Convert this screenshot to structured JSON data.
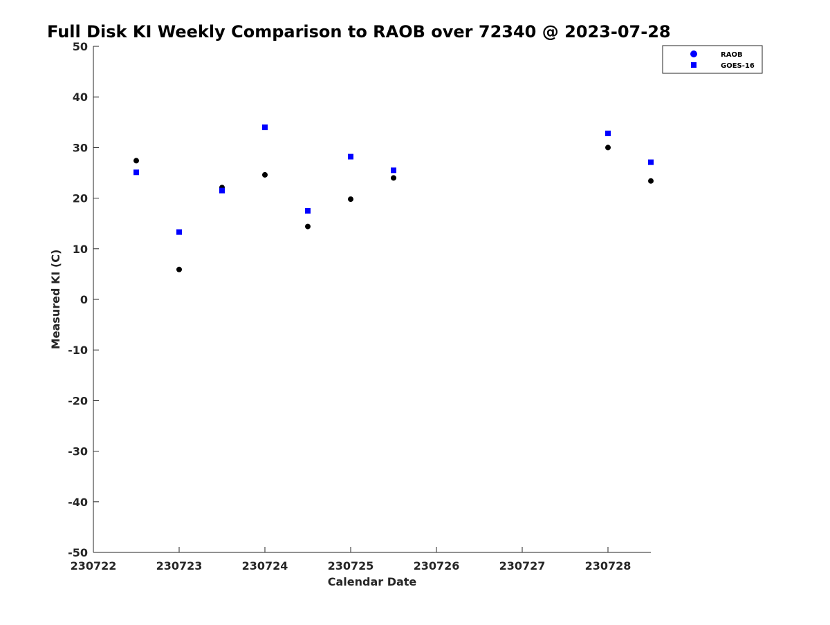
{
  "chart_data": {
    "type": "scatter",
    "title": "Full Disk KI Weekly Comparison to RAOB over 72340 @ 2023-07-28",
    "xlabel": "Calendar Date",
    "ylabel": "Measured KI (C)",
    "x_ticks": [
      {
        "value": 0,
        "label": "230722"
      },
      {
        "value": 1,
        "label": "230723"
      },
      {
        "value": 2,
        "label": "230724"
      },
      {
        "value": 3,
        "label": "230725"
      },
      {
        "value": 4,
        "label": "230726"
      },
      {
        "value": 5,
        "label": "230727"
      },
      {
        "value": 6,
        "label": "230728"
      }
    ],
    "xlim": [
      0,
      6.5
    ],
    "ylim": [
      -50,
      50
    ],
    "y_ticks": [
      50,
      40,
      30,
      20,
      10,
      0,
      -10,
      -20,
      -30,
      -40,
      -50
    ],
    "grid": false,
    "legend_position": "top-right",
    "series": [
      {
        "name": "RAOB",
        "marker": "circle",
        "color": "#000000",
        "legend_color": "#0000ff",
        "points": [
          {
            "x": 0.5,
            "y": 27.4
          },
          {
            "x": 1.0,
            "y": 5.9
          },
          {
            "x": 1.5,
            "y": 22.1
          },
          {
            "x": 2.0,
            "y": 24.6
          },
          {
            "x": 2.5,
            "y": 14.4
          },
          {
            "x": 3.0,
            "y": 19.8
          },
          {
            "x": 3.5,
            "y": 24.0
          },
          {
            "x": 6.0,
            "y": 30.0
          },
          {
            "x": 6.5,
            "y": 23.4
          }
        ]
      },
      {
        "name": "GOES-16",
        "marker": "square",
        "color": "#0000ff",
        "legend_color": "#0000ff",
        "points": [
          {
            "x": 0.5,
            "y": 25.1
          },
          {
            "x": 1.0,
            "y": 13.3
          },
          {
            "x": 1.5,
            "y": 21.5
          },
          {
            "x": 2.0,
            "y": 34.0
          },
          {
            "x": 2.5,
            "y": 17.5
          },
          {
            "x": 3.0,
            "y": 28.2
          },
          {
            "x": 3.5,
            "y": 25.5
          },
          {
            "x": 6.0,
            "y": 32.8
          },
          {
            "x": 6.5,
            "y": 27.1
          }
        ]
      }
    ]
  }
}
